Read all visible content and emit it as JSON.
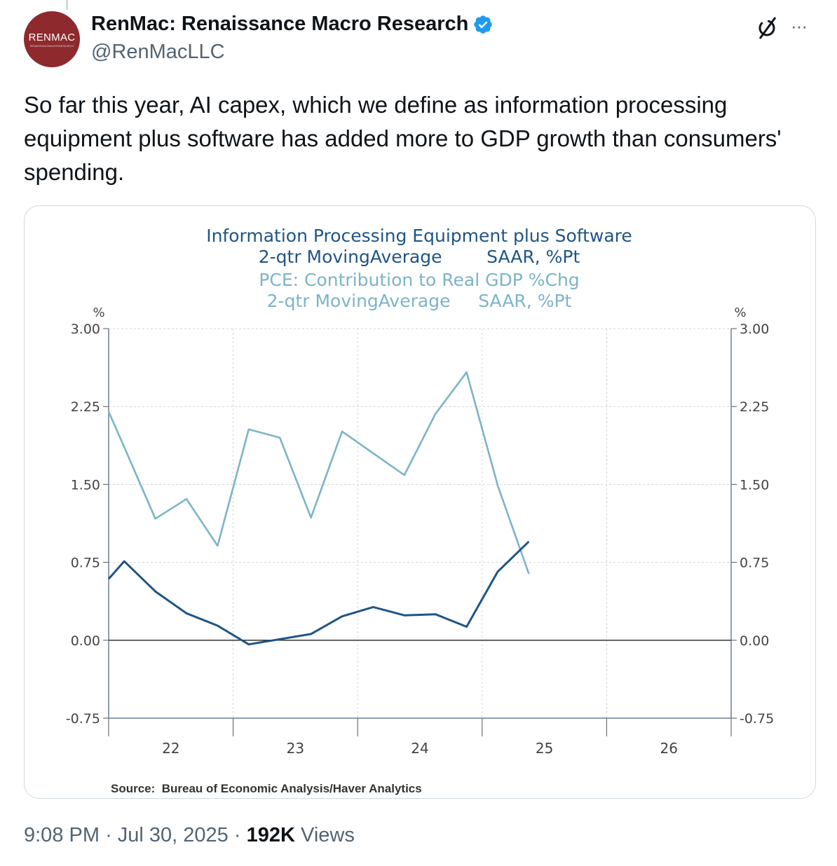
{
  "tweet": {
    "author_name": "RenMac: Renaissance Macro Research",
    "handle": "@RenMacLLC",
    "avatar_logo_text": "RENMAC",
    "avatar_logo_subtext": "RENAISSANCEMACRORESEARCH",
    "text": "So far this year, AI capex, which we define as information processing equipment plus software has added more to GDP growth than consumers' spending.",
    "time": "9:08 PM",
    "date": "Jul 30, 2025",
    "views_count": "192K",
    "views_label": "Views",
    "separator": "·",
    "more_label": "···"
  },
  "colors": {
    "dark_series": "#1f5585",
    "light_series": "#7cb4c8",
    "verified": "#1d9bf0",
    "avatar": "#8e2a2d"
  },
  "chart_data": {
    "type": "line",
    "title_lines": [
      "Information Processing Equipment plus Software",
      "2-qtr MovingAverage        SAAR, %Pt",
      "PCE: Contribution to Real GDP %Chg",
      "2-qtr MovingAverage     SAAR, %Pt"
    ],
    "ylabel_left": "%",
    "ylabel_right": "%",
    "yticks": [
      "3.00",
      "2.25",
      "1.50",
      "0.75",
      "0.00",
      "-0.75"
    ],
    "ytick_values": [
      3.0,
      2.25,
      1.5,
      0.75,
      0.0,
      -0.75
    ],
    "ylim": [
      -0.75,
      3.0
    ],
    "xlim": [
      2022,
      2027
    ],
    "xticks": [
      "22",
      "23",
      "24",
      "25",
      "26"
    ],
    "xtick_values": [
      2022.5,
      2023.5,
      2024.5,
      2025.5,
      2026.5
    ],
    "grid": true,
    "source": "Source:  Bureau of Economic Analysis/Haver Analytics",
    "x": [
      2022.0,
      2022.125,
      2022.375,
      2022.625,
      2022.875,
      2023.125,
      2023.375,
      2023.625,
      2023.875,
      2024.125,
      2024.375,
      2024.625,
      2024.875,
      2025.125,
      2025.375
    ],
    "series": [
      {
        "name": "Information Processing Equipment plus Software, 2-qtr MovingAverage SAAR, %Pt",
        "color": "#1f5585",
        "values": [
          0.59,
          0.76,
          0.47,
          0.26,
          0.14,
          -0.04,
          0.01,
          0.06,
          0.23,
          0.32,
          0.24,
          0.25,
          0.13,
          0.66,
          0.95
        ]
      },
      {
        "name": "PCE: Contribution to Real GDP %Chg, 2-qtr MovingAverage SAAR, %Pt",
        "color": "#7cb4c8",
        "values": [
          2.2,
          1.86,
          1.17,
          1.36,
          0.91,
          2.03,
          1.95,
          1.18,
          2.01,
          1.8,
          1.59,
          2.18,
          2.58,
          1.49,
          0.64
        ]
      }
    ]
  }
}
